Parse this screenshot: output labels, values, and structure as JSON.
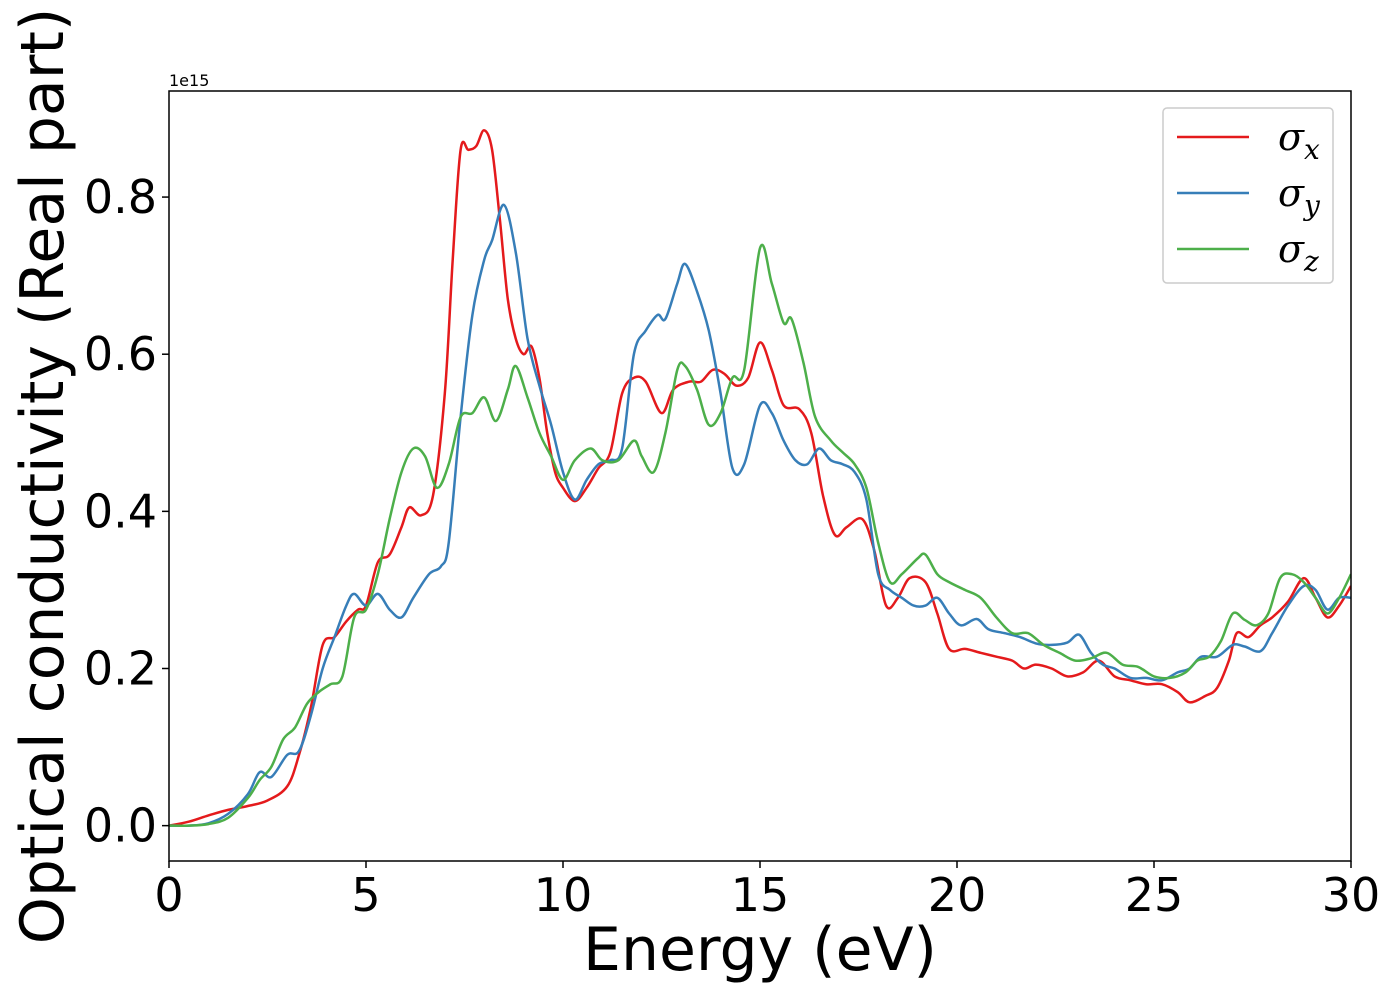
{
  "chart_data": {
    "type": "line",
    "xlabel": "Energy (eV)",
    "ylabel": "Optical conductivity (Real part)",
    "offset_text": "1e15",
    "xlim": [
      0,
      30
    ],
    "ylim": [
      -0.045,
      0.935
    ],
    "x_ticks": [
      0,
      5,
      10,
      15,
      20,
      25,
      30
    ],
    "y_ticks": [
      0.0,
      0.2,
      0.4,
      0.6,
      0.8
    ],
    "x_tick_labels": [
      "0",
      "5",
      "10",
      "15",
      "20",
      "25",
      "30"
    ],
    "y_tick_labels": [
      "0.0",
      "0.2",
      "0.4",
      "0.6",
      "0.8"
    ],
    "grid": false,
    "legend_position": "upper right",
    "series": [
      {
        "name": "σ",
        "subscript": "x",
        "color": "#e41a1c",
        "points": [
          [
            0,
            0
          ],
          [
            0.5,
            0.005
          ],
          [
            1,
            0.013
          ],
          [
            1.5,
            0.02
          ],
          [
            2,
            0.025
          ],
          [
            2.5,
            0.032
          ],
          [
            3,
            0.05
          ],
          [
            3.3,
            0.09
          ],
          [
            3.6,
            0.15
          ],
          [
            3.9,
            0.23
          ],
          [
            4.2,
            0.24
          ],
          [
            4.5,
            0.26
          ],
          [
            4.8,
            0.275
          ],
          [
            5.0,
            0.28
          ],
          [
            5.3,
            0.335
          ],
          [
            5.6,
            0.345
          ],
          [
            5.9,
            0.38
          ],
          [
            6.1,
            0.405
          ],
          [
            6.4,
            0.395
          ],
          [
            6.7,
            0.42
          ],
          [
            7.0,
            0.55
          ],
          [
            7.2,
            0.72
          ],
          [
            7.4,
            0.86
          ],
          [
            7.6,
            0.86
          ],
          [
            7.8,
            0.865
          ],
          [
            8.0,
            0.885
          ],
          [
            8.2,
            0.86
          ],
          [
            8.4,
            0.77
          ],
          [
            8.6,
            0.67
          ],
          [
            8.8,
            0.62
          ],
          [
            9.0,
            0.6
          ],
          [
            9.2,
            0.61
          ],
          [
            9.4,
            0.57
          ],
          [
            9.6,
            0.5
          ],
          [
            9.8,
            0.45
          ],
          [
            10.0,
            0.43
          ],
          [
            10.3,
            0.413
          ],
          [
            10.6,
            0.43
          ],
          [
            10.9,
            0.455
          ],
          [
            11.2,
            0.475
          ],
          [
            11.5,
            0.55
          ],
          [
            11.8,
            0.57
          ],
          [
            12.1,
            0.565
          ],
          [
            12.5,
            0.525
          ],
          [
            12.8,
            0.555
          ],
          [
            13.2,
            0.565
          ],
          [
            13.5,
            0.565
          ],
          [
            13.8,
            0.58
          ],
          [
            14.1,
            0.575
          ],
          [
            14.4,
            0.56
          ],
          [
            14.7,
            0.57
          ],
          [
            15.0,
            0.615
          ],
          [
            15.3,
            0.58
          ],
          [
            15.6,
            0.535
          ],
          [
            16.0,
            0.53
          ],
          [
            16.3,
            0.5
          ],
          [
            16.6,
            0.42
          ],
          [
            16.9,
            0.37
          ],
          [
            17.2,
            0.38
          ],
          [
            17.6,
            0.39
          ],
          [
            17.9,
            0.35
          ],
          [
            18.2,
            0.28
          ],
          [
            18.5,
            0.29
          ],
          [
            18.8,
            0.315
          ],
          [
            19.2,
            0.31
          ],
          [
            19.5,
            0.27
          ],
          [
            19.8,
            0.225
          ],
          [
            20.2,
            0.225
          ],
          [
            20.6,
            0.22
          ],
          [
            21.0,
            0.215
          ],
          [
            21.4,
            0.21
          ],
          [
            21.7,
            0.2
          ],
          [
            22.0,
            0.205
          ],
          [
            22.4,
            0.2
          ],
          [
            22.8,
            0.19
          ],
          [
            23.2,
            0.195
          ],
          [
            23.6,
            0.21
          ],
          [
            24.0,
            0.19
          ],
          [
            24.4,
            0.185
          ],
          [
            24.8,
            0.18
          ],
          [
            25.2,
            0.18
          ],
          [
            25.6,
            0.17
          ],
          [
            25.9,
            0.157
          ],
          [
            26.3,
            0.165
          ],
          [
            26.6,
            0.175
          ],
          [
            26.9,
            0.21
          ],
          [
            27.1,
            0.245
          ],
          [
            27.4,
            0.24
          ],
          [
            27.7,
            0.255
          ],
          [
            28.0,
            0.265
          ],
          [
            28.4,
            0.285
          ],
          [
            28.8,
            0.315
          ],
          [
            29.1,
            0.29
          ],
          [
            29.4,
            0.265
          ],
          [
            29.7,
            0.28
          ],
          [
            30,
            0.305
          ]
        ]
      },
      {
        "name": "σ",
        "subscript": "y",
        "color": "#377eb8",
        "points": [
          [
            0,
            0
          ],
          [
            0.5,
            0
          ],
          [
            1,
            0.003
          ],
          [
            1.5,
            0.015
          ],
          [
            2,
            0.04
          ],
          [
            2.3,
            0.068
          ],
          [
            2.6,
            0.062
          ],
          [
            3,
            0.09
          ],
          [
            3.3,
            0.095
          ],
          [
            3.6,
            0.14
          ],
          [
            3.9,
            0.2
          ],
          [
            4.2,
            0.24
          ],
          [
            4.5,
            0.28
          ],
          [
            4.7,
            0.295
          ],
          [
            5.0,
            0.28
          ],
          [
            5.3,
            0.295
          ],
          [
            5.6,
            0.275
          ],
          [
            5.9,
            0.265
          ],
          [
            6.2,
            0.29
          ],
          [
            6.6,
            0.32
          ],
          [
            6.9,
            0.33
          ],
          [
            7.1,
            0.36
          ],
          [
            7.4,
            0.52
          ],
          [
            7.7,
            0.65
          ],
          [
            8.0,
            0.72
          ],
          [
            8.2,
            0.745
          ],
          [
            8.5,
            0.79
          ],
          [
            8.8,
            0.73
          ],
          [
            9.1,
            0.62
          ],
          [
            9.4,
            0.56
          ],
          [
            9.7,
            0.51
          ],
          [
            10.0,
            0.45
          ],
          [
            10.3,
            0.415
          ],
          [
            10.6,
            0.44
          ],
          [
            10.9,
            0.46
          ],
          [
            11.2,
            0.465
          ],
          [
            11.5,
            0.48
          ],
          [
            11.8,
            0.6
          ],
          [
            12.1,
            0.63
          ],
          [
            12.4,
            0.65
          ],
          [
            12.6,
            0.645
          ],
          [
            12.9,
            0.69
          ],
          [
            13.1,
            0.715
          ],
          [
            13.4,
            0.68
          ],
          [
            13.7,
            0.63
          ],
          [
            14.0,
            0.55
          ],
          [
            14.3,
            0.455
          ],
          [
            14.6,
            0.46
          ],
          [
            15.0,
            0.535
          ],
          [
            15.3,
            0.525
          ],
          [
            15.6,
            0.49
          ],
          [
            15.9,
            0.465
          ],
          [
            16.2,
            0.46
          ],
          [
            16.5,
            0.48
          ],
          [
            16.8,
            0.465
          ],
          [
            17.1,
            0.46
          ],
          [
            17.4,
            0.45
          ],
          [
            17.7,
            0.415
          ],
          [
            18.0,
            0.32
          ],
          [
            18.3,
            0.3
          ],
          [
            18.6,
            0.29
          ],
          [
            18.9,
            0.28
          ],
          [
            19.2,
            0.28
          ],
          [
            19.5,
            0.29
          ],
          [
            19.8,
            0.27
          ],
          [
            20.1,
            0.255
          ],
          [
            20.5,
            0.263
          ],
          [
            20.8,
            0.25
          ],
          [
            21.2,
            0.245
          ],
          [
            21.6,
            0.24
          ],
          [
            22.0,
            0.232
          ],
          [
            22.4,
            0.23
          ],
          [
            22.8,
            0.233
          ],
          [
            23.1,
            0.243
          ],
          [
            23.4,
            0.22
          ],
          [
            23.7,
            0.205
          ],
          [
            24.0,
            0.2
          ],
          [
            24.4,
            0.188
          ],
          [
            24.8,
            0.188
          ],
          [
            25.2,
            0.185
          ],
          [
            25.6,
            0.195
          ],
          [
            25.9,
            0.2
          ],
          [
            26.2,
            0.215
          ],
          [
            26.6,
            0.215
          ],
          [
            27.0,
            0.23
          ],
          [
            27.3,
            0.228
          ],
          [
            27.7,
            0.222
          ],
          [
            28.0,
            0.245
          ],
          [
            28.4,
            0.28
          ],
          [
            28.8,
            0.305
          ],
          [
            29.1,
            0.3
          ],
          [
            29.4,
            0.275
          ],
          [
            29.7,
            0.29
          ],
          [
            30,
            0.29
          ]
        ]
      },
      {
        "name": "σ",
        "subscript": "z",
        "color": "#4daf4a",
        "points": [
          [
            0,
            0
          ],
          [
            0.5,
            0
          ],
          [
            1,
            0.002
          ],
          [
            1.5,
            0.01
          ],
          [
            2,
            0.035
          ],
          [
            2.3,
            0.058
          ],
          [
            2.6,
            0.075
          ],
          [
            2.9,
            0.11
          ],
          [
            3.2,
            0.125
          ],
          [
            3.5,
            0.155
          ],
          [
            3.8,
            0.17
          ],
          [
            4.1,
            0.18
          ],
          [
            4.4,
            0.19
          ],
          [
            4.7,
            0.265
          ],
          [
            5.0,
            0.275
          ],
          [
            5.3,
            0.32
          ],
          [
            5.6,
            0.39
          ],
          [
            5.9,
            0.45
          ],
          [
            6.2,
            0.48
          ],
          [
            6.5,
            0.47
          ],
          [
            6.8,
            0.43
          ],
          [
            7.1,
            0.46
          ],
          [
            7.4,
            0.52
          ],
          [
            7.7,
            0.525
          ],
          [
            8.0,
            0.545
          ],
          [
            8.3,
            0.515
          ],
          [
            8.6,
            0.555
          ],
          [
            8.8,
            0.585
          ],
          [
            9.1,
            0.545
          ],
          [
            9.4,
            0.5
          ],
          [
            9.7,
            0.47
          ],
          [
            10.0,
            0.44
          ],
          [
            10.3,
            0.465
          ],
          [
            10.7,
            0.48
          ],
          [
            11.0,
            0.465
          ],
          [
            11.4,
            0.465
          ],
          [
            11.8,
            0.49
          ],
          [
            12.0,
            0.47
          ],
          [
            12.3,
            0.45
          ],
          [
            12.6,
            0.5
          ],
          [
            12.9,
            0.58
          ],
          [
            13.1,
            0.585
          ],
          [
            13.4,
            0.555
          ],
          [
            13.7,
            0.51
          ],
          [
            14.0,
            0.525
          ],
          [
            14.3,
            0.57
          ],
          [
            14.6,
            0.58
          ],
          [
            15.0,
            0.735
          ],
          [
            15.3,
            0.69
          ],
          [
            15.6,
            0.64
          ],
          [
            15.8,
            0.645
          ],
          [
            16.1,
            0.59
          ],
          [
            16.4,
            0.52
          ],
          [
            16.8,
            0.49
          ],
          [
            17.1,
            0.475
          ],
          [
            17.4,
            0.46
          ],
          [
            17.7,
            0.43
          ],
          [
            18.0,
            0.36
          ],
          [
            18.3,
            0.31
          ],
          [
            18.6,
            0.32
          ],
          [
            19.0,
            0.34
          ],
          [
            19.2,
            0.345
          ],
          [
            19.5,
            0.32
          ],
          [
            19.8,
            0.31
          ],
          [
            20.2,
            0.3
          ],
          [
            20.6,
            0.29
          ],
          [
            21.0,
            0.265
          ],
          [
            21.4,
            0.245
          ],
          [
            21.8,
            0.245
          ],
          [
            22.2,
            0.23
          ],
          [
            22.6,
            0.22
          ],
          [
            23.0,
            0.21
          ],
          [
            23.4,
            0.213
          ],
          [
            23.8,
            0.22
          ],
          [
            24.2,
            0.205
          ],
          [
            24.6,
            0.202
          ],
          [
            25.0,
            0.19
          ],
          [
            25.4,
            0.188
          ],
          [
            25.8,
            0.195
          ],
          [
            26.1,
            0.21
          ],
          [
            26.4,
            0.215
          ],
          [
            26.7,
            0.235
          ],
          [
            27.0,
            0.27
          ],
          [
            27.3,
            0.262
          ],
          [
            27.6,
            0.255
          ],
          [
            27.9,
            0.27
          ],
          [
            28.2,
            0.315
          ],
          [
            28.5,
            0.32
          ],
          [
            28.8,
            0.31
          ],
          [
            29.1,
            0.29
          ],
          [
            29.4,
            0.27
          ],
          [
            29.7,
            0.29
          ],
          [
            30,
            0.32
          ]
        ]
      }
    ]
  }
}
